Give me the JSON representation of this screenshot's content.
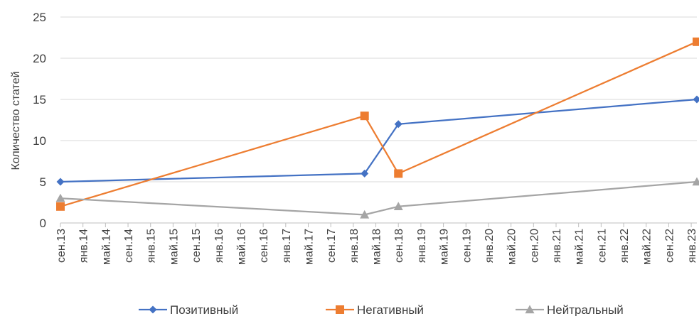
{
  "chart_data": {
    "type": "line",
    "ylabel": "Количество статей",
    "ylim": [
      0,
      25
    ],
    "yticks": [
      0,
      5,
      10,
      15,
      20,
      25
    ],
    "grid": "horizontal",
    "legend_position": "bottom",
    "x_tick_labels": [
      "сен.13",
      "янв.14",
      "май.14",
      "сен.14",
      "янв.15",
      "май.15",
      "сен.15",
      "янв.16",
      "май.16",
      "сен.16",
      "янв.17",
      "май.17",
      "сен.17",
      "янв.18",
      "май.18",
      "сен.18",
      "янв.19",
      "май.19",
      "сен.19",
      "янв.20",
      "май.20",
      "сен.20",
      "янв.21",
      "май.21",
      "сен.21",
      "янв.22",
      "май.22",
      "сен.22",
      "янв.23"
    ],
    "x_range": [
      "2013-09",
      "2023-02"
    ],
    "series": [
      {
        "name": "Позитивный",
        "color": "#4472C4",
        "marker": "diamond",
        "x": [
          "2013-09",
          "2018-03",
          "2018-09",
          "2023-02"
        ],
        "values": [
          5,
          6,
          12,
          15
        ]
      },
      {
        "name": "Негативный",
        "color": "#ED7D31",
        "marker": "square",
        "x": [
          "2013-09",
          "2018-03",
          "2018-09",
          "2023-02"
        ],
        "values": [
          2,
          13,
          6,
          22
        ]
      },
      {
        "name": "Нейтральный",
        "color": "#A5A5A5",
        "marker": "triangle",
        "x": [
          "2013-09",
          "2018-03",
          "2018-09",
          "2023-02"
        ],
        "values": [
          3,
          1,
          2,
          5
        ]
      }
    ]
  }
}
